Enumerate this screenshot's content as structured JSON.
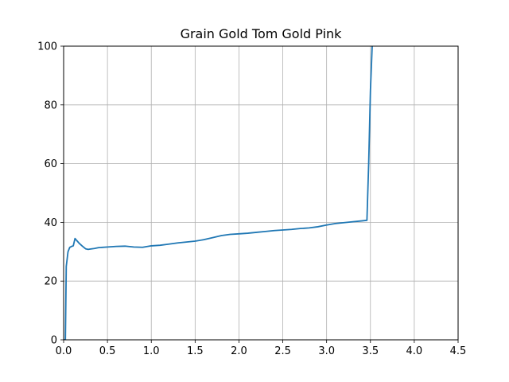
{
  "chart_data": {
    "type": "line",
    "title": "Grain Gold Tom Gold Pink",
    "xlabel": "",
    "ylabel": "",
    "xlim": [
      0,
      4.5
    ],
    "ylim": [
      0,
      100
    ],
    "xticks": [
      0.0,
      0.5,
      1.0,
      1.5,
      2.0,
      2.5,
      3.0,
      3.5,
      4.0,
      4.5
    ],
    "xtick_labels": [
      "0.0",
      "0.5",
      "1.0",
      "1.5",
      "2.0",
      "2.5",
      "3.0",
      "3.5",
      "4.0",
      "4.5"
    ],
    "yticks": [
      0,
      20,
      40,
      60,
      80,
      100
    ],
    "ytick_labels": [
      "0",
      "20",
      "40",
      "60",
      "80",
      "100"
    ],
    "grid": true,
    "series": [
      {
        "color": "#1f77b4",
        "x": [
          0.0,
          0.02,
          0.03,
          0.05,
          0.07,
          0.09,
          0.11,
          0.13,
          0.15,
          0.18,
          0.21,
          0.25,
          0.28,
          0.3,
          0.35,
          0.4,
          0.5,
          0.6,
          0.7,
          0.8,
          0.9,
          1.0,
          1.1,
          1.2,
          1.3,
          1.4,
          1.5,
          1.6,
          1.7,
          1.8,
          1.9,
          2.0,
          2.1,
          2.2,
          2.3,
          2.4,
          2.5,
          2.6,
          2.7,
          2.8,
          2.9,
          3.0,
          3.1,
          3.2,
          3.3,
          3.4,
          3.46,
          3.48,
          3.5,
          3.52
        ],
        "y": [
          0,
          0,
          25,
          30,
          31.5,
          31.8,
          32,
          34.5,
          33.8,
          32.8,
          32,
          31,
          30.8,
          30.9,
          31.1,
          31.4,
          31.6,
          31.8,
          31.9,
          31.6,
          31.5,
          32,
          32.2,
          32.6,
          33,
          33.3,
          33.6,
          34.1,
          34.8,
          35.5,
          35.9,
          36.1,
          36.3,
          36.6,
          36.9,
          37.2,
          37.4,
          37.6,
          37.9,
          38.1,
          38.5,
          39.1,
          39.6,
          39.9,
          40.2,
          40.5,
          40.7,
          60,
          85,
          100
        ]
      }
    ]
  }
}
